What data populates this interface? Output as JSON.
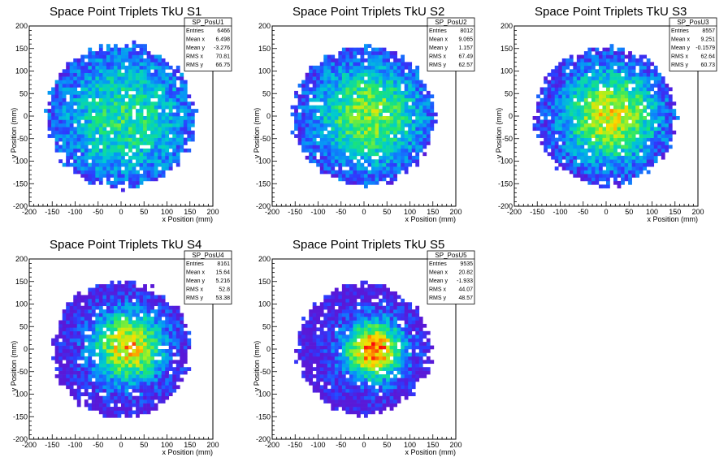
{
  "chart_data": [
    {
      "type": "heatmap",
      "title": "Space Point Triplets TkU S1",
      "xlabel": "x Position (mm)",
      "ylabel": "y Position (mm)",
      "xlim": [
        -200,
        200
      ],
      "ylim": [
        -200,
        200
      ],
      "xticks": [
        "-200",
        "-150",
        "-100",
        "-50",
        "0",
        "50",
        "100",
        "150",
        "200"
      ],
      "yticks": [
        "-200",
        "-150",
        "-100",
        "-50",
        "0",
        "50",
        "100",
        "150",
        "200"
      ],
      "stats": {
        "name": "SP_PosU1",
        "rows": [
          {
            "label": "Entries",
            "value": "6466"
          },
          {
            "label": "Mean x",
            "value": "6.498"
          },
          {
            "label": "Mean y",
            "value": "-3.276"
          },
          {
            "label": "RMS x",
            "value": "70.81"
          },
          {
            "label": "RMS y",
            "value": "66.75"
          }
        ]
      },
      "distribution": {
        "radius": 160,
        "center_x": 6.5,
        "center_y": -3.3,
        "sigma": 110,
        "peak_level": 0.52,
        "seed": 11
      }
    },
    {
      "type": "heatmap",
      "title": "Space Point Triplets TkU S2",
      "xlabel": "x Position (mm)",
      "ylabel": "y Position (mm)",
      "xlim": [
        -200,
        200
      ],
      "ylim": [
        -200,
        200
      ],
      "xticks": [
        "-200",
        "-150",
        "-100",
        "-50",
        "0",
        "50",
        "100",
        "150",
        "200"
      ],
      "yticks": [
        "-200",
        "-150",
        "-100",
        "-50",
        "0",
        "50",
        "100",
        "150",
        "200"
      ],
      "stats": {
        "name": "SP_PosU2",
        "rows": [
          {
            "label": "Entries",
            "value": "8012"
          },
          {
            "label": "Mean x",
            "value": "9.065"
          },
          {
            "label": "Mean y",
            "value": "1.157"
          },
          {
            "label": "RMS x",
            "value": "67.49"
          },
          {
            "label": "RMS y",
            "value": "62.57"
          }
        ]
      },
      "distribution": {
        "radius": 155,
        "center_x": 9,
        "center_y": 1,
        "sigma": 90,
        "peak_level": 0.66,
        "seed": 23
      }
    },
    {
      "type": "heatmap",
      "title": "Space Point Triplets TkU S3",
      "xlabel": "x Position (mm)",
      "ylabel": "y Position (mm)",
      "xlim": [
        -200,
        200
      ],
      "ylim": [
        -200,
        200
      ],
      "xticks": [
        "-200",
        "-150",
        "-100",
        "-50",
        "0",
        "50",
        "100",
        "150",
        "200"
      ],
      "yticks": [
        "-200",
        "-150",
        "-100",
        "-50",
        "0",
        "50",
        "100",
        "150",
        "200"
      ],
      "stats": {
        "name": "SP_PosU3",
        "rows": [
          {
            "label": "Entries",
            "value": "8557"
          },
          {
            "label": "Mean x",
            "value": "9.251"
          },
          {
            "label": "Mean y",
            "value": "-0.1579"
          },
          {
            "label": "RMS x",
            "value": "62.64"
          },
          {
            "label": "RMS y",
            "value": "60.73"
          }
        ]
      },
      "distribution": {
        "radius": 152,
        "center_x": 9,
        "center_y": 0,
        "sigma": 78,
        "peak_level": 0.78,
        "seed": 37
      }
    },
    {
      "type": "heatmap",
      "title": "Space Point Triplets TkU S4",
      "xlabel": "x Position (mm)",
      "ylabel": "y Position (mm)",
      "xlim": [
        -200,
        200
      ],
      "ylim": [
        -200,
        200
      ],
      "xticks": [
        "-200",
        "-150",
        "-100",
        "-50",
        "0",
        "50",
        "100",
        "150",
        "200"
      ],
      "yticks": [
        "-200",
        "-150",
        "-100",
        "-50",
        "0",
        "50",
        "100",
        "150",
        "200"
      ],
      "stats": {
        "name": "SP_PosU4",
        "rows": [
          {
            "label": "Entries",
            "value": "8161"
          },
          {
            "label": "Mean x",
            "value": "15.64"
          },
          {
            "label": "Mean y",
            "value": "5.216"
          },
          {
            "label": "RMS x",
            "value": "52.8"
          },
          {
            "label": "RMS y",
            "value": "53.38"
          }
        ]
      },
      "distribution": {
        "radius": 150,
        "center_x": 16,
        "center_y": 5,
        "sigma": 58,
        "peak_level": 0.84,
        "seed": 41
      }
    },
    {
      "type": "heatmap",
      "title": "Space Point Triplets TkU S5",
      "xlabel": "x Position (mm)",
      "ylabel": "y Position (mm)",
      "xlim": [
        -200,
        200
      ],
      "ylim": [
        -200,
        200
      ],
      "xticks": [
        "-200",
        "-150",
        "-100",
        "-50",
        "0",
        "50",
        "100",
        "150",
        "200"
      ],
      "yticks": [
        "-200",
        "-150",
        "-100",
        "-50",
        "0",
        "50",
        "100",
        "150",
        "200"
      ],
      "stats": {
        "name": "SP_PosU5",
        "rows": [
          {
            "label": "Entries",
            "value": "9535"
          },
          {
            "label": "Mean x",
            "value": "20.82"
          },
          {
            "label": "Mean y",
            "value": "-1.933"
          },
          {
            "label": "RMS x",
            "value": "44.07"
          },
          {
            "label": "RMS y",
            "value": "48.57"
          }
        ]
      },
      "distribution": {
        "radius": 145,
        "center_x": 21,
        "center_y": -2,
        "sigma": 48,
        "peak_level": 0.95,
        "seed": 53
      }
    }
  ]
}
